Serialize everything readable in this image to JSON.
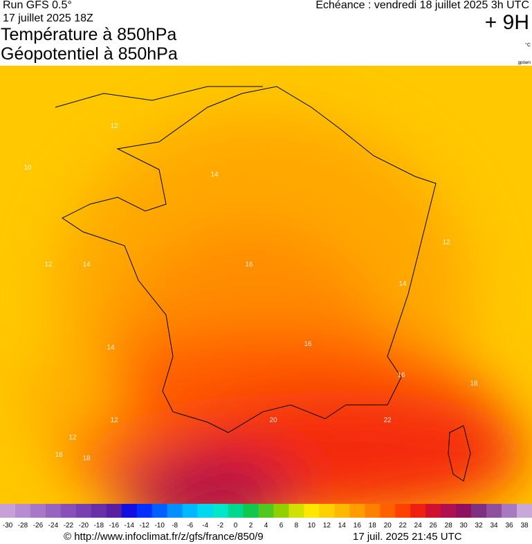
{
  "header": {
    "run": "Run GFS 0.5°",
    "date": "17 juillet 2025 18Z",
    "title1": "Température à 850hPa",
    "title2": "Géopotentiel à 850hPa",
    "echeance": "Echéance : vendredi 18 juillet 2025 3h UTC",
    "lead": "+ 9H",
    "unit": "°C",
    "source_tag": "gpdam"
  },
  "contour_labels": [
    "12",
    "10",
    "12",
    "14",
    "14",
    "14",
    "16",
    "16",
    "18",
    "20",
    "22",
    "16",
    "18",
    "14",
    "12",
    "12",
    "12",
    "16"
  ],
  "colorbar": {
    "ticks": [
      -30,
      -28,
      -26,
      -24,
      -22,
      -20,
      -18,
      -16,
      -14,
      -12,
      -10,
      -8,
      -6,
      -4,
      -2,
      0,
      2,
      4,
      6,
      8,
      10,
      12,
      14,
      16,
      18,
      20,
      22,
      24,
      26,
      28,
      30,
      32,
      34,
      36,
      38
    ],
    "colors": [
      "#c8a0d8",
      "#b88cd0",
      "#a878c8",
      "#9864c0",
      "#8850b8",
      "#7840b0",
      "#6830a8",
      "#5820a0",
      "#1010e0",
      "#0030ff",
      "#0060ff",
      "#0090ff",
      "#00b8ff",
      "#00d8f0",
      "#00e8c8",
      "#00d890",
      "#10c850",
      "#50c820",
      "#90d000",
      "#d0e000",
      "#ffe800",
      "#ffd000",
      "#ffb800",
      "#ff9c00",
      "#ff8000",
      "#ff6000",
      "#ff4000",
      "#f02010",
      "#d01030",
      "#b01050",
      "#901060",
      "#803080",
      "#9050a0",
      "#a878c0",
      "#c8a8d8"
    ]
  },
  "footer": {
    "url": "© http://www.infoclimat.fr/z/gfs/france/850/9",
    "timestamp": "17 juil. 2025 21:45 UTC"
  }
}
